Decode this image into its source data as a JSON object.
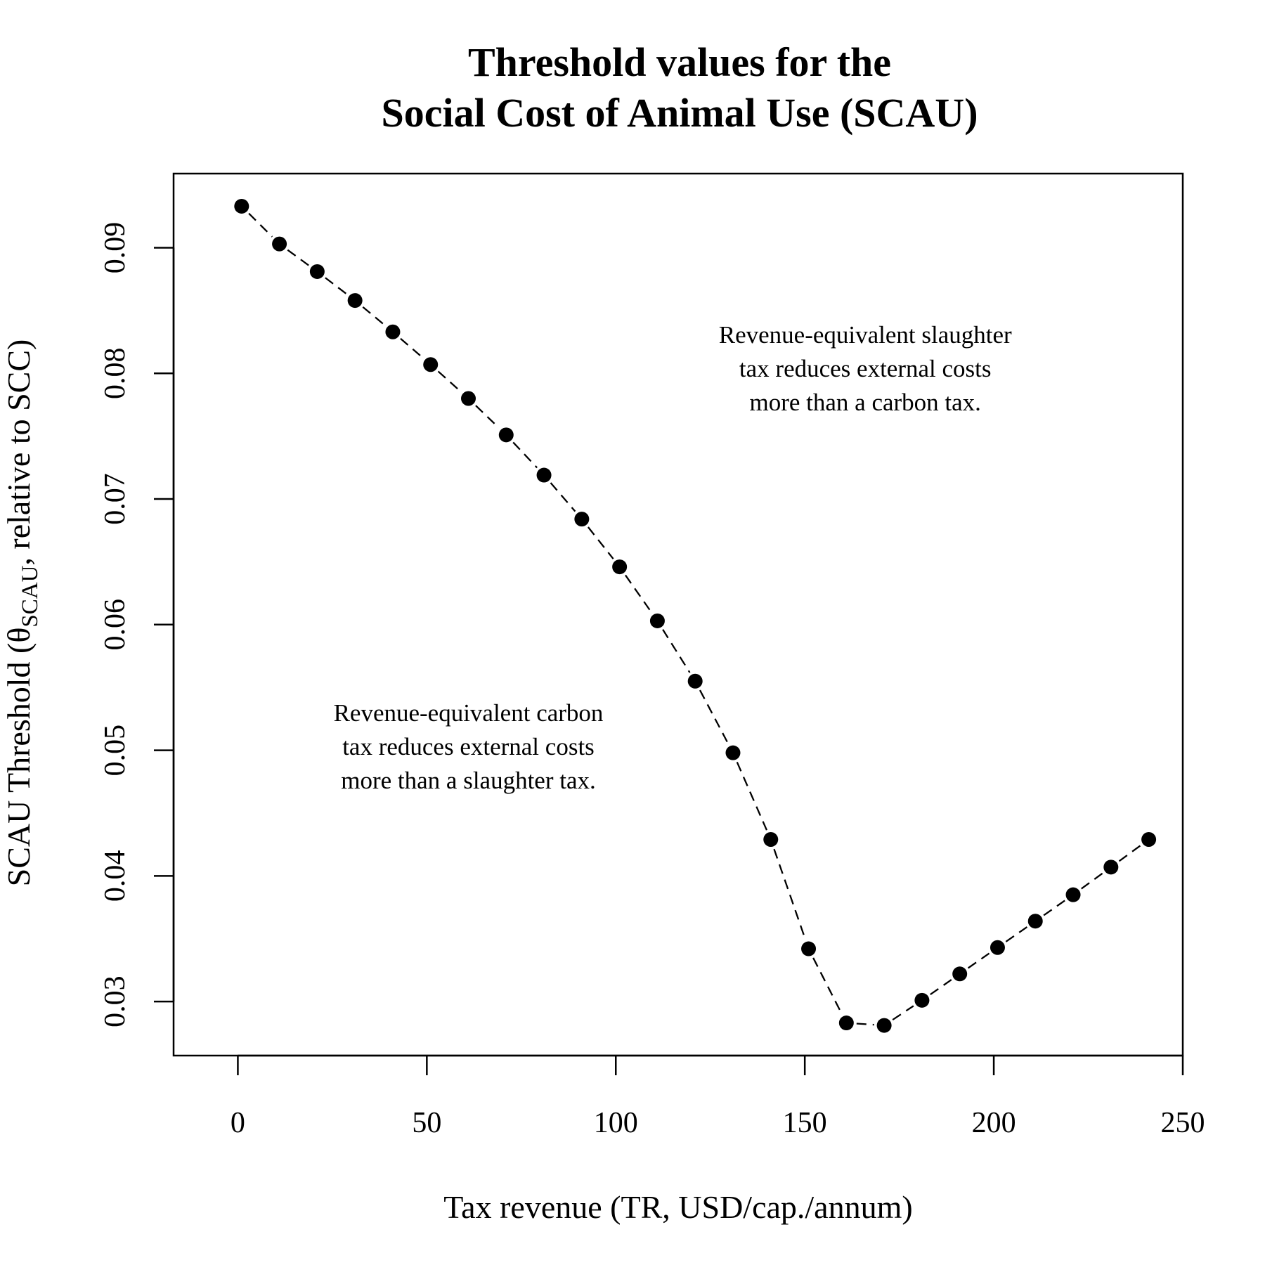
{
  "chart_data": {
    "type": "scatter",
    "title_lines": [
      "Threshold values for the",
      "Social Cost of Animal Use (SCAU)"
    ],
    "xlabel": "Tax revenue (TR, USD/cap./annum)",
    "ylabel": {
      "prefix": "SCAU Threshold (",
      "symbol": "θ",
      "subscript": "SCAU",
      "suffix": ", relative to SCC)"
    },
    "xlim": [
      -17,
      250
    ],
    "ylim": [
      0.0257,
      0.0959
    ],
    "x_ticks": [
      0,
      50,
      100,
      150,
      200,
      250
    ],
    "y_ticks": [
      0.03,
      0.04,
      0.05,
      0.06,
      0.07,
      0.08,
      0.09
    ],
    "x_tick_labels": [
      "0",
      "50",
      "100",
      "150",
      "200",
      "250"
    ],
    "y_tick_labels": [
      "0.03",
      "0.04",
      "0.05",
      "0.06",
      "0.07",
      "0.08",
      "0.09"
    ],
    "grid": false,
    "line_style": "dashed",
    "series": [
      {
        "x": [
          1,
          11,
          21,
          31,
          41,
          51,
          61,
          71,
          81,
          91,
          101,
          111,
          121,
          131,
          141,
          151,
          161,
          171,
          181,
          191,
          201,
          211,
          221,
          231,
          241
        ],
        "y": [
          0.0933,
          0.0903,
          0.0881,
          0.0858,
          0.0833,
          0.0807,
          0.078,
          0.0751,
          0.0719,
          0.0684,
          0.0646,
          0.0603,
          0.0555,
          0.0498,
          0.0429,
          0.0342,
          0.0283,
          0.0281,
          0.0301,
          0.0322,
          0.0343,
          0.0364,
          0.0385,
          0.0407,
          0.0429
        ]
      }
    ],
    "annotations": [
      {
        "lines": [
          "Revenue-equivalent slaughter",
          "tax reduces external costs",
          "more than a carbon tax."
        ],
        "x": 166,
        "y": 0.0804
      },
      {
        "lines": [
          "Revenue-equivalent carbon",
          "tax reduces external costs",
          "more than a slaughter tax."
        ],
        "x": 61,
        "y": 0.0503
      }
    ],
    "colors": {
      "points": "#000000",
      "line": "#000000",
      "text": "#000000"
    }
  }
}
